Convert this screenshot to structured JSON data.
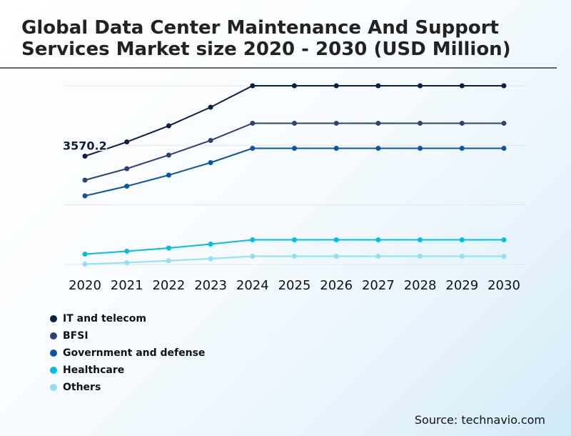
{
  "chart_data": {
    "type": "line",
    "title": "Global Data Center Maintenance And Support Services Market size 2020 - 2030 (USD Million)",
    "x": [
      "2020",
      "2021",
      "2022",
      "2023",
      "2024",
      "2025",
      "2026",
      "2027",
      "2028",
      "2029",
      "2030"
    ],
    "ylim": [
      0,
      5891
    ],
    "grid": true,
    "legend_placement": "bottom-left",
    "series": [
      {
        "name": "IT and telecom",
        "color": "#0b1f45",
        "values": [
          3570.2,
          4041,
          4571,
          5184,
          5891,
          5891,
          5891,
          5891,
          5891,
          5891,
          5891
        ]
      },
      {
        "name": "BFSI",
        "color": "#2e4374",
        "values": [
          2780,
          3158,
          3606,
          4089,
          4655,
          4655,
          4655,
          4655,
          4655,
          4655,
          4655
        ]
      },
      {
        "name": "Government and defense",
        "color": "#0a56a4",
        "values": [
          2262,
          2580,
          2945,
          3358,
          3829,
          3829,
          3829,
          3829,
          3829,
          3829,
          3829
        ]
      },
      {
        "name": "Healthcare",
        "color": "#00c0e0",
        "values": [
          342,
          436,
          542,
          672,
          813,
          813,
          813,
          813,
          813,
          813,
          813
        ]
      },
      {
        "name": "Others",
        "color": "#8ee0f2",
        "values": [
          12,
          59,
          125,
          189,
          271,
          271,
          271,
          271,
          271,
          271,
          271
        ]
      }
    ],
    "annotations": [
      {
        "series": "IT and telecom",
        "x": "2020",
        "text": "3570.2"
      }
    ]
  },
  "source": "Source: technavio.com"
}
